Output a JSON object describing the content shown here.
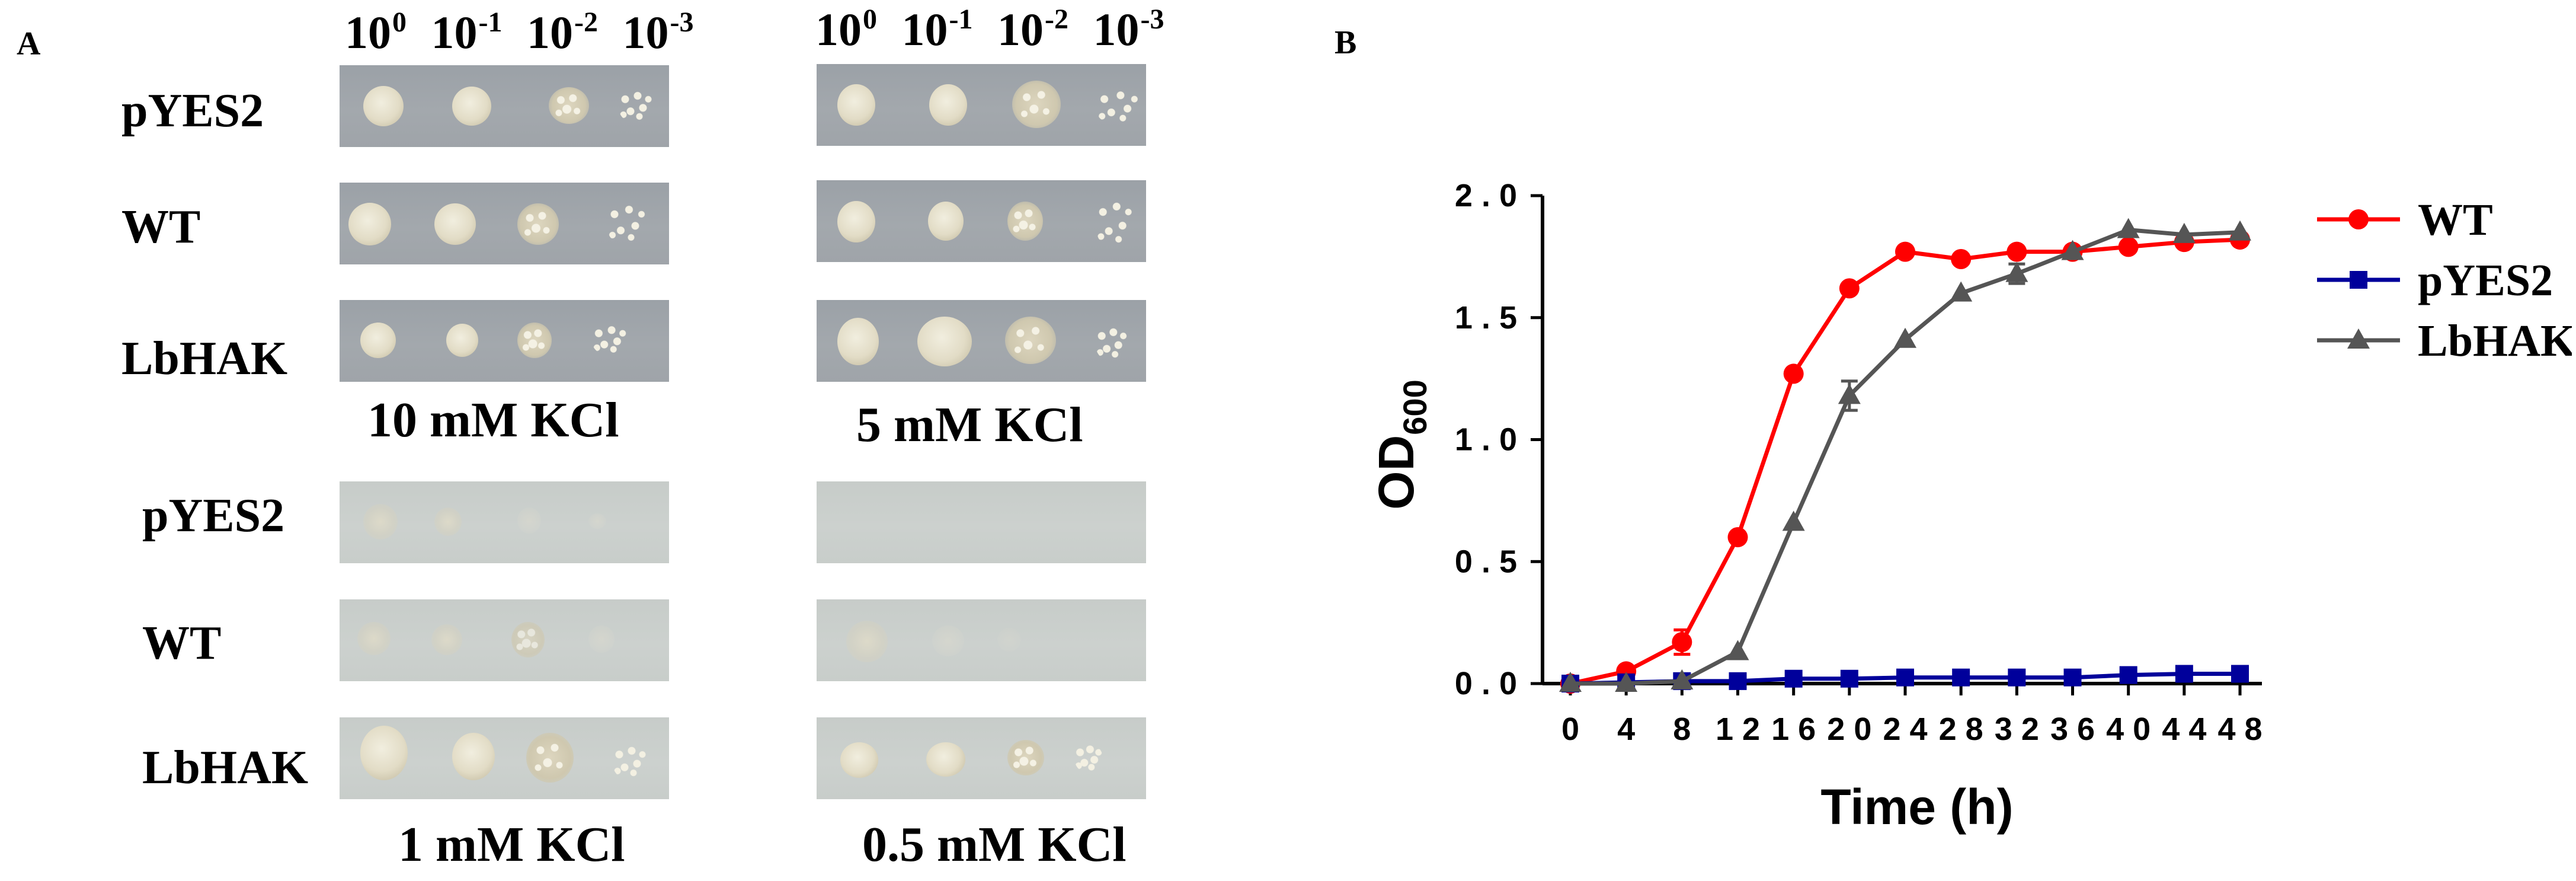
{
  "panel_a": {
    "label": "A",
    "dilutions_left": [
      {
        "base": "10",
        "exp": "0"
      },
      {
        "base": "10",
        "exp": "-1"
      },
      {
        "base": "10",
        "exp": "-2"
      },
      {
        "base": "10",
        "exp": "-3"
      }
    ],
    "dilutions_right": [
      {
        "base": "10",
        "exp": "0"
      },
      {
        "base": "10",
        "exp": "-1"
      },
      {
        "base": "10",
        "exp": "-2"
      },
      {
        "base": "10",
        "exp": "-3"
      }
    ],
    "rows_top": [
      "pYES2",
      "WT",
      "LbHAK"
    ],
    "rows_bottom": [
      "pYES2",
      "WT",
      "LbHAK"
    ],
    "conditions": {
      "top_left": "10 mM KCl",
      "top_right": "5 mM KCl",
      "bottom_left": "1 mM KCl",
      "bottom_right": "0.5 mM KCl"
    }
  },
  "panel_b": {
    "label": "B"
  },
  "chart_data": {
    "type": "line",
    "xlabel": "Time (h)",
    "ylabel": "OD",
    "ylabel_subscript": "600",
    "x": [
      0,
      4,
      8,
      12,
      16,
      20,
      24,
      28,
      32,
      36,
      40,
      44,
      48
    ],
    "x_tick_labels": [
      "0",
      "4",
      "8",
      "1 2",
      "1 6",
      "2 0",
      "2 4",
      "2 8",
      "3 2",
      "3 6",
      "4 0",
      "4 4",
      "4 8"
    ],
    "y_ticks": [
      0.0,
      0.5,
      1.0,
      1.5,
      2.0
    ],
    "y_tick_labels": [
      "0 . 0",
      "0 . 5",
      "1 . 0",
      "1 . 5",
      "2 . 0"
    ],
    "ylim": [
      0,
      2.0
    ],
    "xlim": [
      0,
      48
    ],
    "legend_position": "top-right",
    "series": [
      {
        "name": "WT",
        "color": "#ff0000",
        "marker": "circle",
        "values": [
          0.0,
          0.05,
          0.17,
          0.6,
          1.27,
          1.62,
          1.77,
          1.74,
          1.77,
          1.77,
          1.79,
          1.81,
          1.82
        ],
        "errors": [
          0.01,
          0.01,
          0.05,
          0.01,
          0.01,
          0.01,
          0.01,
          0.01,
          0.01,
          0.01,
          0.01,
          0.01,
          0.01
        ]
      },
      {
        "name": "pYES2",
        "color": "#00009b",
        "marker": "square",
        "values": [
          0.0,
          0.005,
          0.01,
          0.01,
          0.02,
          0.02,
          0.025,
          0.025,
          0.025,
          0.025,
          0.035,
          0.04,
          0.04
        ],
        "errors": [
          0.0,
          0.0,
          0.0,
          0.0,
          0.0,
          0.0,
          0.0,
          0.0,
          0.0,
          0.0,
          0.0,
          0.0,
          0.0
        ]
      },
      {
        "name": "LbHAK",
        "color": "#555555",
        "marker": "triangle",
        "values": [
          0.0,
          0.0,
          0.01,
          0.13,
          0.66,
          1.18,
          1.41,
          1.6,
          1.68,
          1.77,
          1.86,
          1.84,
          1.85
        ],
        "errors": [
          0.0,
          0.0,
          0.0,
          0.0,
          0.01,
          0.06,
          0.01,
          0.01,
          0.04,
          0.01,
          0.01,
          0.01,
          0.01
        ]
      }
    ]
  },
  "colors": {
    "plate_high_k": "#a0a5aa",
    "plate_low_k": "#cacfcc",
    "colony": "#e8e3cf"
  }
}
